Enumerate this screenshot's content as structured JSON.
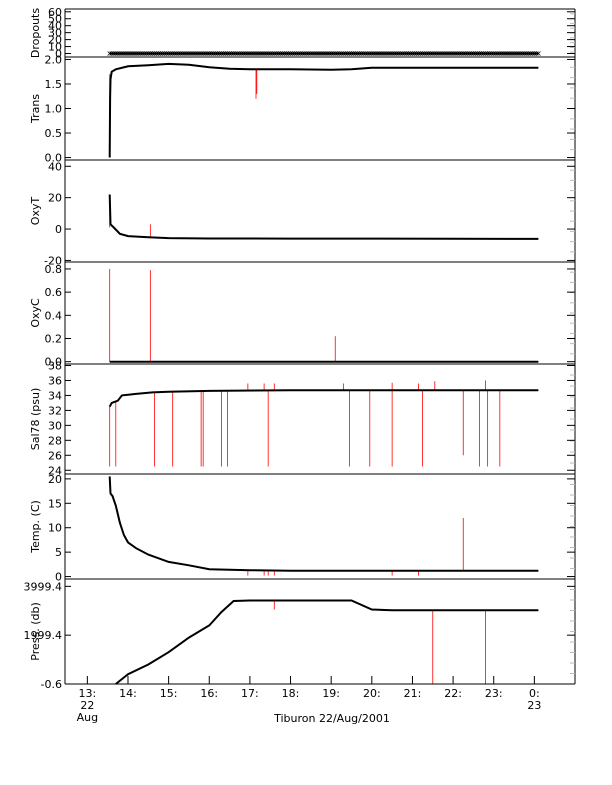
{
  "chart_data": {
    "type": "line",
    "caption": "Tiburon 22/Aug/2001",
    "x_ticks": [
      {
        "x": 13,
        "label": "13:",
        "sub": "22",
        "sub2": "Aug"
      },
      {
        "x": 14,
        "label": "14:"
      },
      {
        "x": 15,
        "label": "15:"
      },
      {
        "x": 16,
        "label": "16:"
      },
      {
        "x": 17,
        "label": "17:"
      },
      {
        "x": 18,
        "label": "18:"
      },
      {
        "x": 19,
        "label": "19:"
      },
      {
        "x": 20,
        "label": "20:"
      },
      {
        "x": 21,
        "label": "21:"
      },
      {
        "x": 22,
        "label": "22:"
      },
      {
        "x": 23,
        "label": "23:"
      },
      {
        "x": 24,
        "label": "0:",
        "sub": "23"
      }
    ],
    "xlim": [
      12.45,
      25.0
    ],
    "colors": {
      "series": "#000000",
      "spikes": "#ff0000",
      "axes": "#000000",
      "minor_ticks": "#bbbbbb"
    },
    "panels": [
      {
        "ylabel": "Dropouts",
        "ylim": [
          -5,
          64
        ],
        "ticks": [
          {
            "v": 0,
            "label": "0"
          },
          {
            "v": 10,
            "label": "10"
          },
          {
            "v": 20,
            "label": "20"
          },
          {
            "v": 30,
            "label": "30"
          },
          {
            "v": 40,
            "label": "40"
          },
          {
            "v": 50,
            "label": "50"
          },
          {
            "v": 60,
            "label": "60"
          }
        ],
        "series": [
          [
            13.55,
            0
          ],
          [
            24.1,
            0
          ]
        ],
        "markers": "x",
        "spikes": []
      },
      {
        "ylabel": "Trans",
        "ylim": [
          -0.05,
          2.05
        ],
        "ticks": [
          {
            "v": 0,
            "label": "0.0"
          },
          {
            "v": 0.5,
            "label": "0.5"
          },
          {
            "v": 1.0,
            "label": "1.0"
          },
          {
            "v": 1.5,
            "label": "1.5"
          },
          {
            "v": 2.0,
            "label": "2.0"
          }
        ],
        "series": [
          [
            13.55,
            0.0
          ],
          [
            13.56,
            1.2
          ],
          [
            13.57,
            1.6
          ],
          [
            13.6,
            1.75
          ],
          [
            13.7,
            1.8
          ],
          [
            14.0,
            1.86
          ],
          [
            14.5,
            1.88
          ],
          [
            15.0,
            1.91
          ],
          [
            15.5,
            1.89
          ],
          [
            16.0,
            1.84
          ],
          [
            16.5,
            1.81
          ],
          [
            17.0,
            1.8
          ],
          [
            18.0,
            1.8
          ],
          [
            19.0,
            1.79
          ],
          [
            19.5,
            1.8
          ],
          [
            20.0,
            1.83
          ],
          [
            21.0,
            1.83
          ],
          [
            22.0,
            1.83
          ],
          [
            23.0,
            1.83
          ],
          [
            24.1,
            1.83
          ]
        ],
        "markers": "",
        "spikes": [
          {
            "x": 13.55,
            "y0": 1.7,
            "y1": 0.0
          },
          {
            "x": 17.15,
            "y0": 1.8,
            "y1": 1.2
          },
          {
            "x": 17.17,
            "y0": 1.8,
            "y1": 1.3
          }
        ]
      },
      {
        "ylabel": "OxyT",
        "ylim": [
          -21,
          44
        ],
        "ticks": [
          {
            "v": -20,
            "label": "-20"
          },
          {
            "v": 0,
            "label": "0"
          },
          {
            "v": 20,
            "label": "20"
          },
          {
            "v": 40,
            "label": "40"
          }
        ],
        "series": [
          [
            13.55,
            22
          ],
          [
            13.57,
            3
          ],
          [
            13.65,
            1
          ],
          [
            13.8,
            -3
          ],
          [
            14.0,
            -4.5
          ],
          [
            14.5,
            -5.2
          ],
          [
            15.0,
            -5.8
          ],
          [
            16.0,
            -6.0
          ],
          [
            18.0,
            -6.1
          ],
          [
            20.0,
            -6.1
          ],
          [
            22.0,
            -6.2
          ],
          [
            24.1,
            -6.3
          ]
        ],
        "markers": "",
        "spikes": [
          {
            "x": 13.55,
            "y0": 1,
            "y1": 22
          },
          {
            "x": 14.55,
            "y0": -5,
            "y1": 3
          }
        ]
      },
      {
        "ylabel": "OxyC",
        "ylim": [
          -0.02,
          0.86
        ],
        "ticks": [
          {
            "v": 0,
            "label": "0.0"
          },
          {
            "v": 0.2,
            "label": "0.2"
          },
          {
            "v": 0.4,
            "label": "0.4"
          },
          {
            "v": 0.6,
            "label": "0.6"
          },
          {
            "v": 0.8,
            "label": "0.8"
          }
        ],
        "series": [
          [
            13.55,
            0.0
          ],
          [
            24.1,
            0.0
          ]
        ],
        "markers": "",
        "spikes": [
          {
            "x": 13.55,
            "y0": 0,
            "y1": 0.8
          },
          {
            "x": 14.55,
            "y0": 0,
            "y1": 0.79
          },
          {
            "x": 19.1,
            "y0": 0,
            "y1": 0.22
          }
        ]
      },
      {
        "ylabel": "Sal78 (psu)",
        "ylim": [
          23.5,
          38.2
        ],
        "ticks": [
          {
            "v": 24,
            "label": "24"
          },
          {
            "v": 26,
            "label": "26"
          },
          {
            "v": 28,
            "label": "28"
          },
          {
            "v": 30,
            "label": "30"
          },
          {
            "v": 32,
            "label": "32"
          },
          {
            "v": 34,
            "label": "34"
          },
          {
            "v": 36,
            "label": "36"
          },
          {
            "v": 38,
            "label": "38"
          }
        ],
        "series": [
          [
            13.55,
            32.5
          ],
          [
            13.6,
            33.0
          ],
          [
            13.7,
            33.2
          ],
          [
            13.75,
            33.3
          ],
          [
            13.85,
            34.0
          ],
          [
            14.2,
            34.2
          ],
          [
            14.6,
            34.4
          ],
          [
            15.0,
            34.5
          ],
          [
            16.0,
            34.6
          ],
          [
            18.0,
            34.7
          ],
          [
            20.0,
            34.7
          ],
          [
            22.0,
            34.7
          ],
          [
            24.1,
            34.7
          ]
        ],
        "markers": "",
        "spikes": [
          {
            "x": 13.55,
            "y0": 32.5,
            "y1": 24.5
          },
          {
            "x": 13.7,
            "y0": 33.2,
            "y1": 24.5
          },
          {
            "x": 14.65,
            "y0": 34.4,
            "y1": 24.5
          },
          {
            "x": 15.1,
            "y0": 34.5,
            "y1": 24.5
          },
          {
            "x": 15.8,
            "y0": 34.6,
            "y1": 24.5
          },
          {
            "x": 15.85,
            "y0": 34.6,
            "y1": 24.5
          },
          {
            "x": 16.3,
            "y0": 34.6,
            "y1": 24.5
          },
          {
            "x": 16.45,
            "y0": 34.6,
            "y1": 24.5
          },
          {
            "x": 16.95,
            "y0": 34.6,
            "y1": 35.6
          },
          {
            "x": 17.35,
            "y0": 34.7,
            "y1": 35.6
          },
          {
            "x": 17.45,
            "y0": 34.7,
            "y1": 24.5
          },
          {
            "x": 17.6,
            "y0": 34.7,
            "y1": 35.6
          },
          {
            "x": 19.3,
            "y0": 34.7,
            "y1": 35.6
          },
          {
            "x": 19.45,
            "y0": 34.7,
            "y1": 24.5
          },
          {
            "x": 19.95,
            "y0": 34.7,
            "y1": 24.5
          },
          {
            "x": 20.5,
            "y0": 34.7,
            "y1": 35.7
          },
          {
            "x": 20.5,
            "y0": 34.7,
            "y1": 24.5
          },
          {
            "x": 21.15,
            "y0": 34.7,
            "y1": 35.6
          },
          {
            "x": 21.25,
            "y0": 34.7,
            "y1": 24.5
          },
          {
            "x": 21.55,
            "y0": 34.7,
            "y1": 35.9
          },
          {
            "x": 22.25,
            "y0": 34.7,
            "y1": 26.0
          },
          {
            "x": 22.65,
            "y0": 34.7,
            "y1": 24.5
          },
          {
            "x": 22.8,
            "y0": 34.7,
            "y1": 36.0
          },
          {
            "x": 22.85,
            "y0": 34.7,
            "y1": 24.5
          },
          {
            "x": 23.15,
            "y0": 34.7,
            "y1": 24.5
          }
        ]
      },
      {
        "ylabel": "Temp. (C)",
        "ylim": [
          -0.5,
          21
        ],
        "ticks": [
          {
            "v": 0,
            "label": "0"
          },
          {
            "v": 5,
            "label": "5"
          },
          {
            "v": 10,
            "label": "10"
          },
          {
            "v": 15,
            "label": "15"
          },
          {
            "v": 20,
            "label": "20"
          }
        ],
        "series": [
          [
            13.55,
            20.5
          ],
          [
            13.57,
            17.0
          ],
          [
            13.62,
            16.5
          ],
          [
            13.7,
            14.5
          ],
          [
            13.8,
            11.0
          ],
          [
            13.9,
            8.5
          ],
          [
            14.0,
            7.0
          ],
          [
            14.2,
            5.8
          ],
          [
            14.5,
            4.5
          ],
          [
            15.0,
            3.0
          ],
          [
            15.5,
            2.3
          ],
          [
            16.0,
            1.5
          ],
          [
            17.0,
            1.3
          ],
          [
            18.0,
            1.2
          ],
          [
            20.0,
            1.2
          ],
          [
            22.0,
            1.2
          ],
          [
            24.1,
            1.2
          ]
        ],
        "markers": "",
        "spikes": [
          {
            "x": 16.95,
            "y0": 1.3,
            "y1": 0.2
          },
          {
            "x": 17.35,
            "y0": 1.3,
            "y1": 0.2
          },
          {
            "x": 17.45,
            "y0": 1.3,
            "y1": 0.2
          },
          {
            "x": 17.6,
            "y0": 1.3,
            "y1": 0.2
          },
          {
            "x": 20.5,
            "y0": 1.2,
            "y1": 0.2
          },
          {
            "x": 21.15,
            "y0": 1.2,
            "y1": 0.2
          },
          {
            "x": 22.25,
            "y0": 1.2,
            "y1": 12.0
          }
        ]
      },
      {
        "ylabel": "Press. (db)",
        "ylim": [
          -0.6,
          4300
        ],
        "ticks": [
          {
            "v": -0.6,
            "label": "-0.6"
          },
          {
            "v": 1999.4,
            "label": "1999.4"
          },
          {
            "v": 3999.4,
            "label": "3999.4"
          }
        ],
        "series": [
          [
            13.7,
            -0.6
          ],
          [
            14.0,
            400
          ],
          [
            14.5,
            800
          ],
          [
            15.0,
            1300
          ],
          [
            15.5,
            1900
          ],
          [
            16.0,
            2400
          ],
          [
            16.3,
            2950
          ],
          [
            16.6,
            3400
          ],
          [
            17.0,
            3420
          ],
          [
            18.0,
            3420
          ],
          [
            19.5,
            3420
          ],
          [
            20.0,
            3050
          ],
          [
            20.5,
            3020
          ],
          [
            21.0,
            3020
          ],
          [
            22.0,
            3020
          ],
          [
            23.0,
            3020
          ],
          [
            24.1,
            3020
          ]
        ],
        "markers": "",
        "spikes": [
          {
            "x": 17.6,
            "y0": 3420,
            "y1": 3050
          },
          {
            "x": 21.5,
            "y0": 3020,
            "y1": -0.6
          },
          {
            "x": 22.8,
            "y0": 3020,
            "y1": -0.6
          }
        ]
      }
    ]
  }
}
